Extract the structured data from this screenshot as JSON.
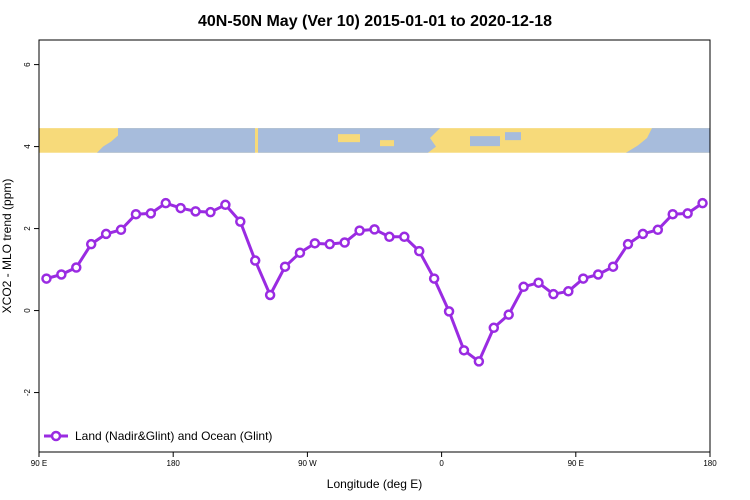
{
  "chart_data": {
    "type": "line",
    "title": "40N-50N May (Ver 10)   2015-01-01 to 2020-12-18",
    "xlabel": "Longitude (deg E)",
    "ylabel": "XCO2 - MLO trend (ppm)",
    "x_ticks": [
      "90 E",
      "180",
      "90 W",
      "0",
      "90 E",
      "180"
    ],
    "y_ticks": [
      "-2",
      "0",
      "2",
      "4",
      "6"
    ],
    "xlim": [
      90,
      450
    ],
    "ylim": [
      -3.45,
      6.6
    ],
    "grid": false,
    "legend_position": "bottom-left",
    "map_band": {
      "y_range": [
        3.85,
        4.45
      ],
      "land_color": "#F7DA7A",
      "ocean_color": "#A7BCDC"
    },
    "series": [
      {
        "name": "Land (Nadir&Glint) and Ocean (Glint)",
        "color": "#9A2BE2",
        "x": [
          94,
          102,
          110,
          118,
          126,
          134,
          142,
          150,
          158,
          166,
          174,
          182,
          190,
          198,
          206,
          214,
          222,
          230,
          238,
          246,
          254,
          262,
          270,
          278,
          286,
          294,
          302,
          310,
          318,
          326,
          334,
          342,
          350,
          358,
          366,
          374,
          382,
          390,
          398,
          406,
          414,
          422,
          430,
          438,
          446
        ],
        "y": [
          0.78,
          0.88,
          1.05,
          1.62,
          1.87,
          1.97,
          2.35,
          2.37,
          2.62,
          2.5,
          2.42,
          2.4,
          2.58,
          2.17,
          1.22,
          0.38,
          1.07,
          1.41,
          1.64,
          1.62,
          1.66,
          1.95,
          1.98,
          1.8,
          1.8,
          1.45,
          0.78,
          -0.02,
          -0.97,
          -1.24,
          -0.42,
          -0.1,
          0.58,
          0.68,
          0.4,
          0.47,
          0.78,
          0.88,
          1.07,
          1.62,
          1.87,
          1.97,
          2.35,
          2.37,
          2.62
        ]
      }
    ]
  }
}
